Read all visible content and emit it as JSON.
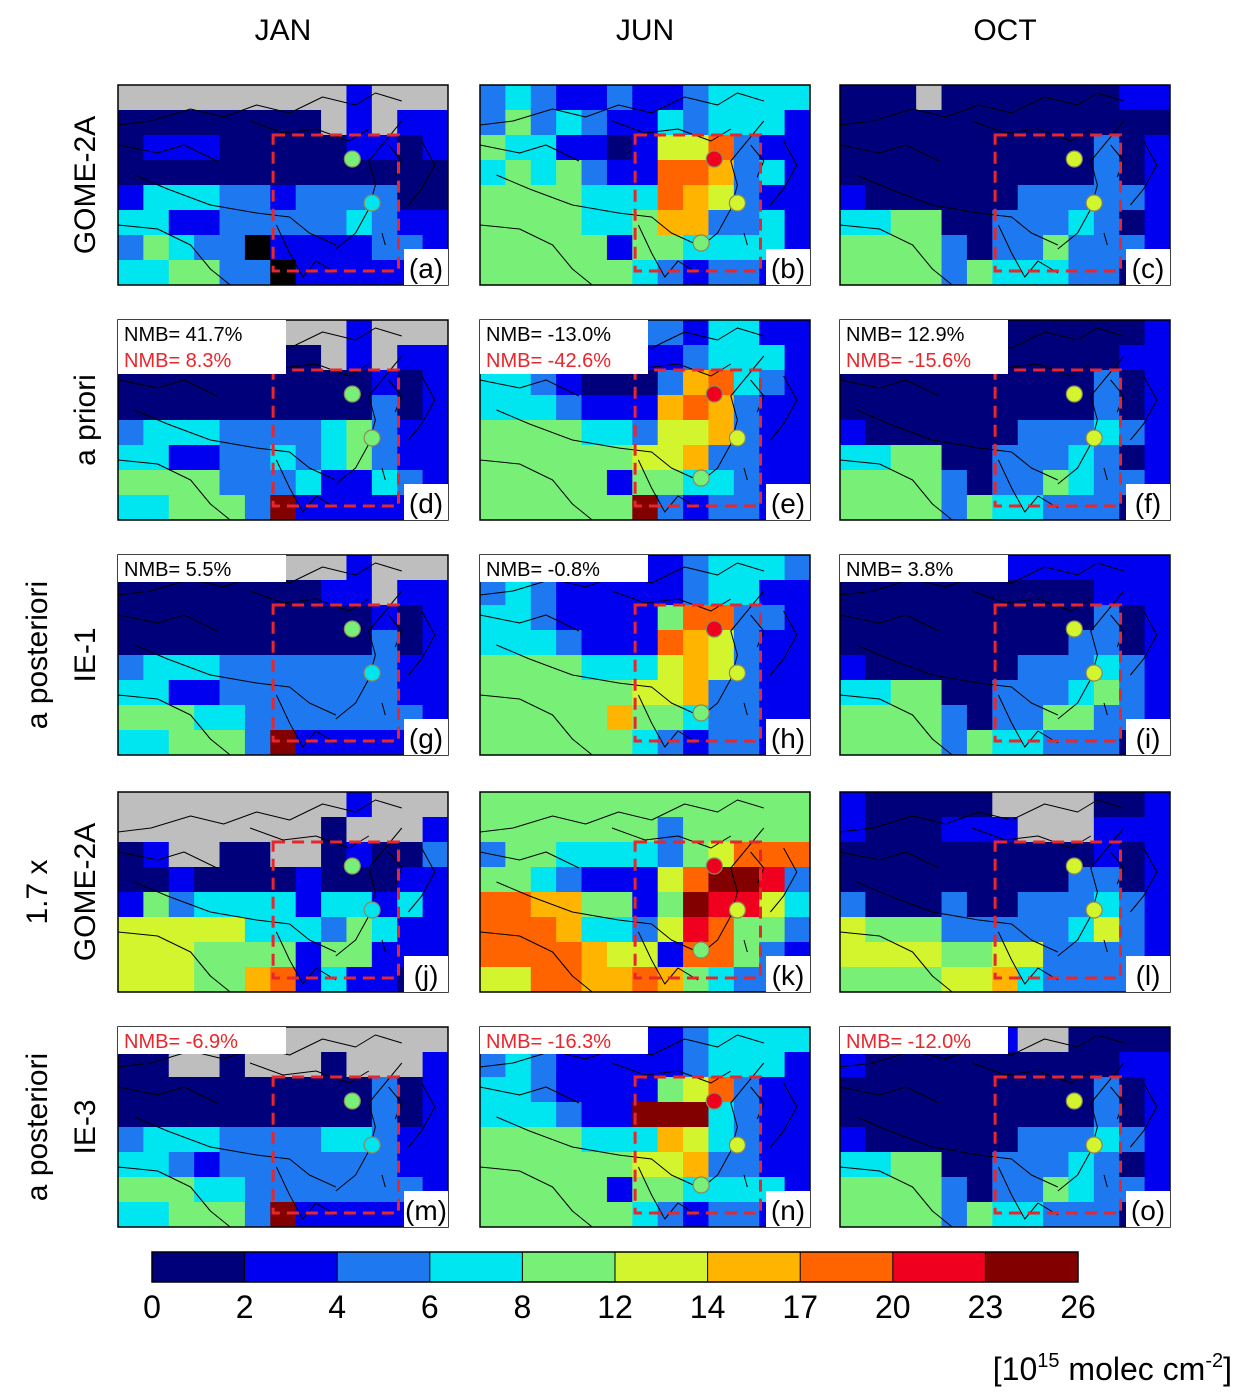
{
  "chart_data": {
    "type": "heatmap",
    "columns": [
      "JAN",
      "JUN",
      "OCT"
    ],
    "rows": [
      {
        "label_lines": [
          "GOME-2A"
        ]
      },
      {
        "label_lines": [
          "a priori"
        ]
      },
      {
        "label_lines": [
          "a posteriori",
          "IE-1"
        ]
      },
      {
        "label_lines": [
          "1.7 x",
          "GOME-2A"
        ]
      },
      {
        "label_lines": [
          "a posteriori",
          "IE-3"
        ]
      }
    ],
    "panels": [
      {
        "letter": "(a)",
        "nmb": []
      },
      {
        "letter": "(b)",
        "nmb": []
      },
      {
        "letter": "(c)",
        "nmb": []
      },
      {
        "letter": "(d)",
        "nmb": [
          {
            "text": "NMB=  41.7%",
            "color": "#000000"
          },
          {
            "text": "NMB=   8.3%",
            "color": "#e8262b"
          }
        ]
      },
      {
        "letter": "(e)",
        "nmb": [
          {
            "text": "NMB= -13.0%",
            "color": "#000000"
          },
          {
            "text": "NMB= -42.6%",
            "color": "#e8262b"
          }
        ]
      },
      {
        "letter": "(f)",
        "nmb": [
          {
            "text": "NMB=  12.9%",
            "color": "#000000"
          },
          {
            "text": "NMB= -15.6%",
            "color": "#e8262b"
          }
        ]
      },
      {
        "letter": "(g)",
        "nmb": [
          {
            "text": "NMB=   5.5%",
            "color": "#000000"
          }
        ]
      },
      {
        "letter": "(h)",
        "nmb": [
          {
            "text": "NMB=  -0.8%",
            "color": "#000000"
          }
        ]
      },
      {
        "letter": "(i)",
        "nmb": [
          {
            "text": "NMB=   3.8%",
            "color": "#000000"
          }
        ]
      },
      {
        "letter": "(j)",
        "nmb": []
      },
      {
        "letter": "(k)",
        "nmb": []
      },
      {
        "letter": "(l)",
        "nmb": []
      },
      {
        "letter": "(m)",
        "nmb": [
          {
            "text": "NMB=  -6.9%",
            "color": "#e8262b"
          }
        ]
      },
      {
        "letter": "(n)",
        "nmb": [
          {
            "text": "NMB= -16.3%",
            "color": "#e8262b"
          }
        ]
      },
      {
        "letter": "(o)",
        "nmb": [
          {
            "text": "NMB= -12.0%",
            "color": "#e8262b"
          }
        ]
      }
    ],
    "colorbar": {
      "ticks": [
        "0",
        "2",
        "4",
        "6",
        "8",
        "12",
        "14",
        "17",
        "20",
        "23",
        "26"
      ],
      "colors": [
        "#00007a",
        "#0000f0",
        "#1e78f0",
        "#00e6f0",
        "#78f078",
        "#d2f52d",
        "#ffb400",
        "#ff6400",
        "#f0001e",
        "#820000"
      ],
      "unit_prefix": "[10",
      "unit_exp1": "15",
      "unit_mid": " molec cm",
      "unit_exp2": "-2",
      "unit_suffix": "]"
    },
    "grid_colors": {
      "missing": "#bebebe",
      "box": "#e8262b",
      "dot_outline": "#8a8a5a"
    },
    "grids": [
      [
        "GGGGGGGGGBGGG",
        "00000000GBGBB",
        "0BBB00000BB0B",
        "0000000000000",
        "B333DDBDDDD00",
        "33BBDDDDD3DBB",
        "D43DD1BBBBDDB",
        "3344DD1BBBBBB"
      ],
      [
        "D3DBBDBBD3333",
        "D4D3DBB3D333B",
        "433BB0B557DBB",
        "3434DBB776D3B",
        "4444333765DBB",
        "444433466DD3B",
        "44444B443333B",
        "4444443DBDDBB"
      ],
      [
        "000G0000000BB",
        "0000000000000",
        "0000000000D0B",
        "0000000000D0B",
        "B000000DDDDDB",
        "334400DDD3D0B",
        "4444D0DD4DDDB",
        "4444D4333DD0B"
      ],
      [
        "GGGGGGGGGBGGG",
        "00000000GBGBB",
        "0000000000B0B",
        "0000000000D0B",
        "D333DDDD34DBB",
        "33BBDD3D34DBB",
        "4444DDD3BB3DB",
        "33444D9BBBBBB"
      ],
      [
        "B3D3BDDDB33BB",
        "D3DBBBBBD333B",
        "33DB000D673DB",
        "333DBBB676DBB",
        "444433D556DBB",
        "444444556DDBB",
        "44444B4433DBB",
        "4444449DBDDBB"
      ],
      [
        "B000D0000000B",
        "B0000000000BB",
        "0000000000D0B",
        "0000000000D0B",
        "B000000DDD3DB",
        "334400DDD3D0B",
        "4444D0DD43DDB",
        "4444D433DDD0B"
      ],
      [
        "GGGGGGGGGBGGG",
        "00000000BBGBB",
        "0000000000B0B",
        "0000000000D0B",
        "D333DDDDDDDBB",
        "33BBDDDDDDDBB",
        "44433DDDDDDDB",
        "33444D9BBBBBB"
      ],
      [
        "D3DBBDBBD333D",
        "D3DBBBBBD33BB",
        "33DBBBB477DDB",
        "333DBBB765DBB",
        "4444333565DBB",
        "444444556DDBB",
        "444446443DDBB",
        "4444443DBDDBB"
      ],
      [
        "BBBBBBBBBBBBB",
        "0000000000BBB",
        "0000000000D0B",
        "000000000DD0B",
        "B000000DDD3DB",
        "334400DDD34DB",
        "4444D0DD44DDB",
        "4444D433DDD0B"
      ],
      [
        "GGGGGGGGGBGGG",
        "GGGGGGGG0GGGB",
        "0BGG00GG0B00D",
        "00B0000B000BB",
        "B4D3333B33B3B",
        "55555333D43BB",
        "5554444B44BBB",
        "5554467B3BB0B"
      ],
      [
        "4444444444444",
        "4444444D44444",
        "D443333D45777",
        "443DBBB57998D",
        "776644B498853",
        "777633D58744D",
        "7777655B774DB",
        "5577667643DDB"
      ],
      [
        "B00000GGGG00B",
        "B000BBBGGGBBB",
        "0000000000B0B",
        "000000000DD0B",
        "D000D00DDD3DB",
        "5444DDDDD35DB",
        "55554455DDDDB",
        "44445563DDDDB"
      ],
      [
        "GGGGGGGGGGGGG",
        "00GG0GGG0GGGB",
        "0000000000D0B",
        "0000000000D0B",
        "D333DDDD33DBB",
        "33DBDDDDDDDBB",
        "44433DDDDDDDB",
        "33444D9BBBBBB"
      ],
      [
        "D3DBBDBBD3333",
        "D3DBBBBBD333B",
        "33DBBBB457DBB",
        "333DBB9993DBB",
        "4444333653DBB",
        "444444556DDBB",
        "44444B443333B",
        "4444443DBDDBB"
      ],
      [
        "BBBBBBBGG0000",
        "B0000000000BB",
        "0000000000D0B",
        "0000000000D0B",
        "B000000DDD3DB",
        "334400DDD3D0B",
        "4444D0DD43DDB",
        "4444D433DDD0B"
      ]
    ],
    "dots": [
      [
        "4",
        "3"
      ],
      [
        "8",
        "5",
        "4"
      ],
      [
        "5",
        "5"
      ],
      [
        "4",
        "4"
      ],
      [
        "8",
        "5",
        "4"
      ],
      [
        "5",
        "5"
      ],
      [
        "4",
        "3"
      ],
      [
        "8",
        "5",
        "4"
      ],
      [
        "5",
        "5"
      ],
      [
        "4",
        "3"
      ],
      [
        "8",
        "5",
        "4"
      ],
      [
        "5",
        "5"
      ],
      [
        "4",
        "3"
      ],
      [
        "8",
        "5",
        "4"
      ],
      [
        "5",
        "5"
      ]
    ]
  }
}
